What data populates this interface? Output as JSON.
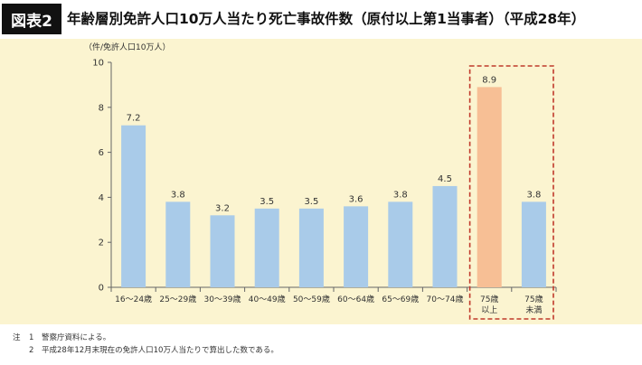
{
  "header": {
    "badge": "図表2",
    "title": "年齢層別免許人口10万人当たり死亡事故件数（原付以上第1当事者）（平成28年）"
  },
  "chart_data": {
    "type": "bar",
    "unit_label": "（件/免許人口10万人）",
    "categories": [
      [
        "16～24歳"
      ],
      [
        "25～29歳"
      ],
      [
        "30～39歳"
      ],
      [
        "40～49歳"
      ],
      [
        "50～59歳"
      ],
      [
        "60～64歳"
      ],
      [
        "65～69歳"
      ],
      [
        "70～74歳"
      ],
      [
        "75歳",
        "以上"
      ],
      [
        "75歳",
        "未満"
      ]
    ],
    "values": [
      7.2,
      3.8,
      3.2,
      3.5,
      3.5,
      3.6,
      3.8,
      4.5,
      8.9,
      3.8
    ],
    "value_labels": [
      "7.2",
      "3.8",
      "3.2",
      "3.5",
      "3.5",
      "3.6",
      "3.8",
      "4.5",
      "8.9",
      "3.8"
    ],
    "highlight_index": 8,
    "boxed_indices": [
      8,
      9
    ],
    "ylim": [
      0,
      10
    ],
    "yticks": [
      0,
      2,
      4,
      6,
      8,
      10
    ],
    "ytick_labels": [
      "0",
      "2",
      "4",
      "6",
      "8",
      "10"
    ],
    "xlabel": "",
    "ylabel": "",
    "grid": false,
    "colors": {
      "bar": "#a9cbe9",
      "highlight": "#f7bf95",
      "box": "#c0392b",
      "axis": "#666666",
      "background": "#fbf4d0"
    }
  },
  "notes": [
    {
      "tag": "注",
      "num": "1",
      "text": "警察庁資料による。"
    },
    {
      "tag": "",
      "num": "2",
      "text": "平成28年12月末現在の免許人口10万人当たりで算出した数である。"
    }
  ]
}
